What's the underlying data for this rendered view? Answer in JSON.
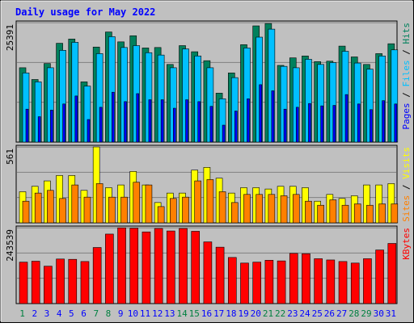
{
  "title": "Daily usage for May 2022",
  "colors": {
    "background": "#c0c0c0",
    "title": "#0000ff",
    "hits": "#00805c",
    "files": "#00c0ff",
    "pages": "#0000ff",
    "visits": "#ffff00",
    "sites": "#ff8000",
    "kbytes": "#ff0000",
    "weekday_label": "#0000ff",
    "weekend_label": "#008040"
  },
  "chart_data": [
    {
      "type": "bar",
      "name": "hits-files-pages",
      "axis_max_label": "25391",
      "ylim": [
        0,
        25391
      ],
      "legend": [
        {
          "key": "pages",
          "label": "Pages"
        },
        {
          "key": "sep1",
          "label": " / "
        },
        {
          "key": "files",
          "label": "Files"
        },
        {
          "key": "sep2",
          "label": " / "
        },
        {
          "key": "hits",
          "label": "Hits"
        }
      ],
      "series": [
        {
          "key": "hits",
          "values": [
            15800,
            13300,
            16700,
            21000,
            21900,
            12800,
            20200,
            23400,
            21300,
            22600,
            20000,
            20100,
            16500,
            20500,
            19200,
            17300,
            10400,
            14700,
            20700,
            24700,
            25200,
            16300,
            17900,
            18300,
            17100,
            17200,
            20400,
            18100,
            16500,
            18800,
            20900
          ]
        },
        {
          "key": "files",
          "values": [
            14700,
            12800,
            15800,
            19500,
            21200,
            11900,
            18800,
            22400,
            20100,
            20500,
            19000,
            18500,
            15800,
            19800,
            18300,
            15800,
            9200,
            13700,
            20000,
            22300,
            24000,
            16100,
            15800,
            17600,
            16500,
            16900,
            19300,
            16800,
            15500,
            18300,
            19600
          ]
        },
        {
          "key": "pages",
          "values": [
            7000,
            5400,
            6800,
            8100,
            9800,
            4800,
            7400,
            10600,
            8600,
            10300,
            9000,
            9000,
            7200,
            9000,
            8600,
            7600,
            3600,
            6600,
            9200,
            12200,
            10900,
            7000,
            7400,
            8200,
            7700,
            7800,
            10100,
            8100,
            6900,
            8800,
            8100
          ]
        }
      ]
    },
    {
      "type": "bar",
      "name": "visits-sites",
      "axis_max_label": "561",
      "ylim": [
        0,
        561
      ],
      "legend": [
        {
          "key": "sites",
          "label": "Sites"
        },
        {
          "key": "sep",
          "label": " / "
        },
        {
          "key": "visits",
          "label": "Visits"
        }
      ],
      "series": [
        {
          "key": "visits",
          "values": [
            230,
            270,
            310,
            350,
            350,
            240,
            561,
            260,
            280,
            380,
            280,
            150,
            220,
            220,
            390,
            410,
            330,
            220,
            260,
            260,
            250,
            270,
            270,
            260,
            160,
            210,
            180,
            200,
            280,
            280,
            290
          ]
        },
        {
          "key": "sites",
          "values": [
            160,
            220,
            240,
            180,
            280,
            190,
            290,
            190,
            190,
            300,
            280,
            120,
            180,
            190,
            310,
            320,
            230,
            150,
            210,
            210,
            210,
            200,
            210,
            160,
            130,
            170,
            130,
            140,
            130,
            140,
            140
          ]
        }
      ]
    },
    {
      "type": "bar",
      "name": "kbytes",
      "axis_max_label": "243539",
      "ylim": [
        0,
        243539
      ],
      "legend": [
        {
          "key": "kbytes",
          "label": "KBytes"
        }
      ],
      "series": [
        {
          "key": "kbytes",
          "values": [
            133000,
            136000,
            120000,
            143000,
            142000,
            135000,
            180000,
            223000,
            243000,
            242000,
            230000,
            241000,
            233000,
            241000,
            232000,
            198000,
            181000,
            148000,
            130000,
            133000,
            139000,
            137000,
            161000,
            160000,
            144000,
            140000,
            135000,
            130000,
            144000,
            172000,
            193000
          ]
        }
      ]
    }
  ],
  "days": [
    "1",
    "2",
    "3",
    "4",
    "5",
    "6",
    "7",
    "8",
    "9",
    "10",
    "11",
    "12",
    "13",
    "14",
    "15",
    "16",
    "17",
    "18",
    "19",
    "20",
    "21",
    "22",
    "23",
    "24",
    "25",
    "26",
    "27",
    "28",
    "29",
    "30",
    "31"
  ],
  "weekend_days": [
    1,
    7,
    8,
    14,
    15,
    21,
    22,
    28,
    29
  ]
}
